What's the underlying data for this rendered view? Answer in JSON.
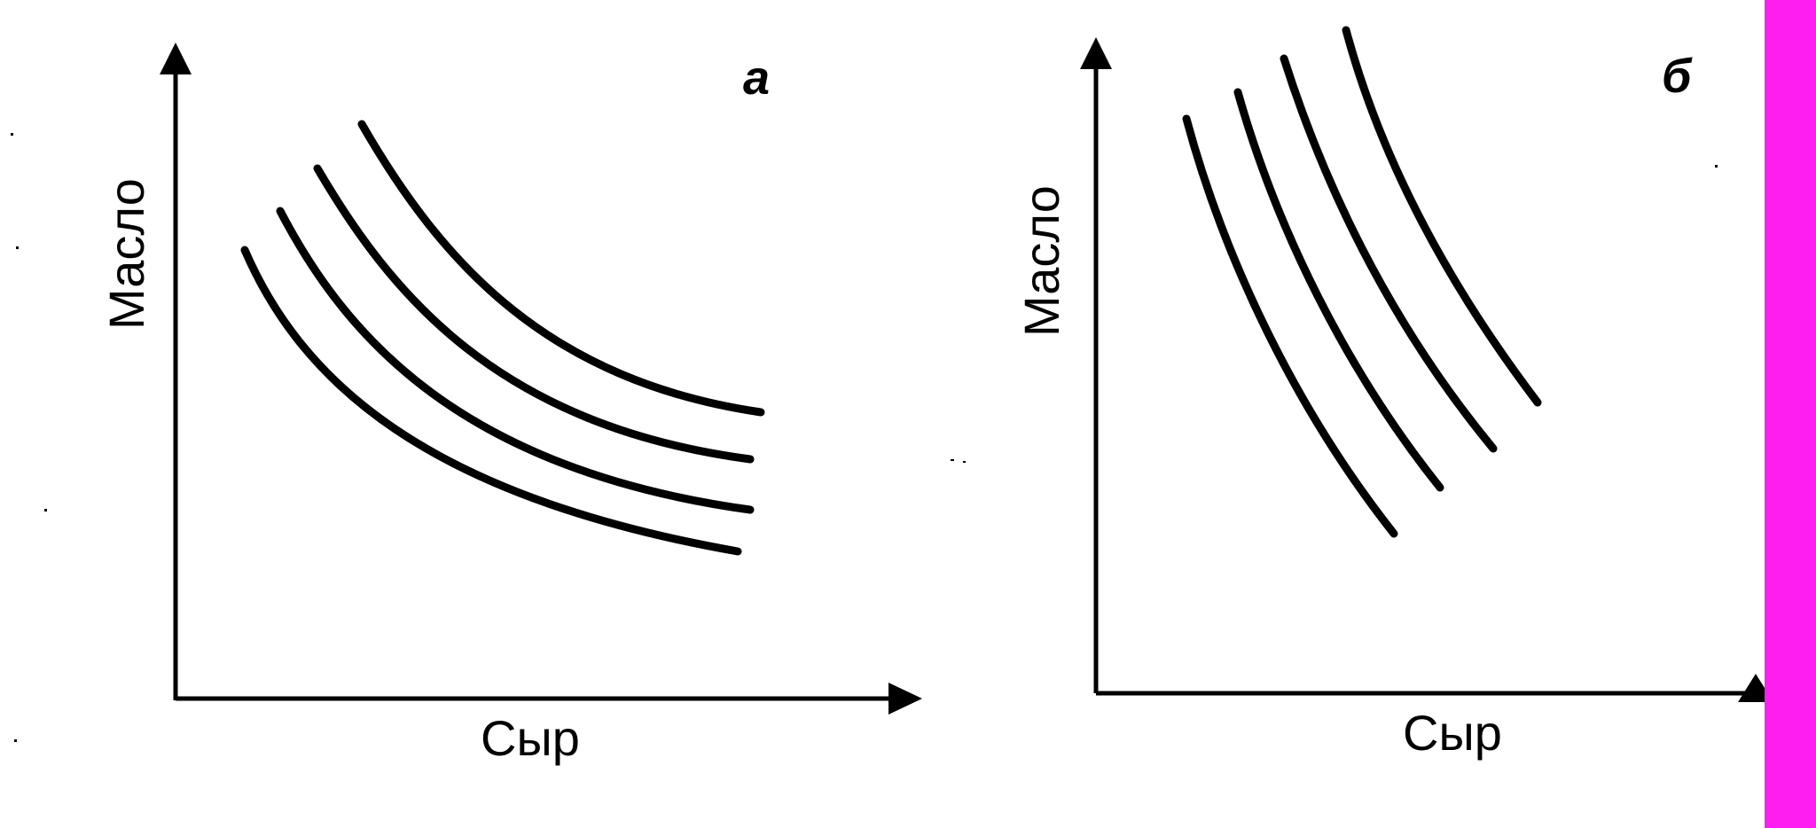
{
  "panels": [
    {
      "letter": "а",
      "y_axis_label": "Масло",
      "x_axis_label": "Сыр",
      "curve_count": 4
    },
    {
      "letter": "б",
      "y_axis_label": "Масло",
      "x_axis_label": "Сыр",
      "curve_count": 4
    }
  ],
  "colors": {
    "ink": "#000000",
    "background": "#ffffff",
    "edge_strip": "#ff1ef0"
  }
}
